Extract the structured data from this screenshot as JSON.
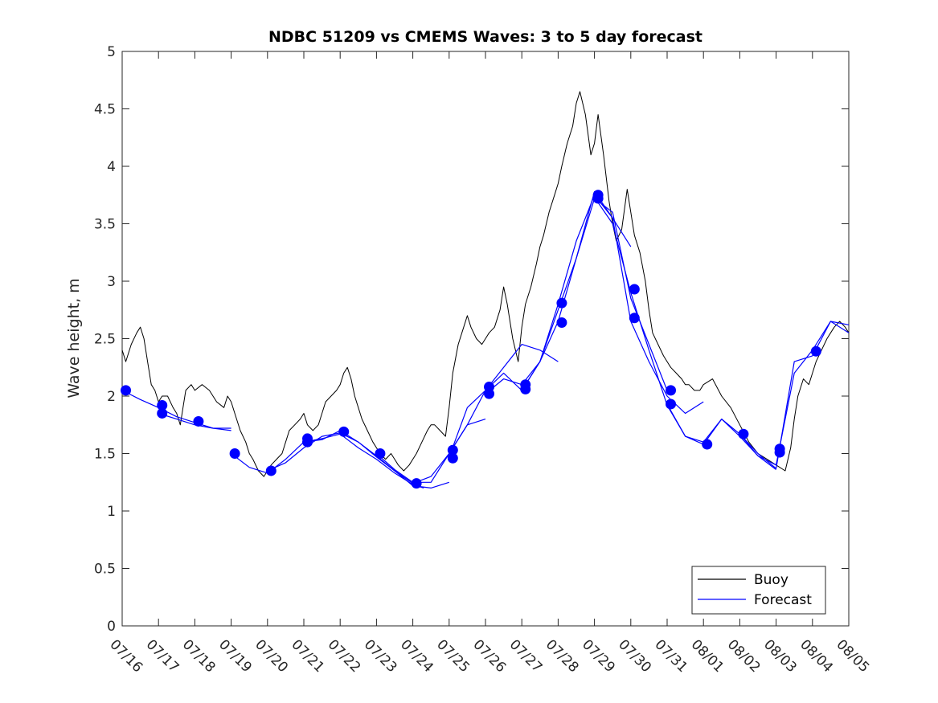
{
  "chart_data": {
    "type": "line",
    "title": "NDBC 51209 vs CMEMS Waves: 3 to 5 day forecast",
    "xlabel": "",
    "ylabel": "Wave height, m",
    "xlim": [
      "07/16",
      "08/05"
    ],
    "ylim": [
      0,
      5
    ],
    "x_ticks": [
      "07/16",
      "07/17",
      "07/18",
      "07/19",
      "07/20",
      "07/21",
      "07/22",
      "07/23",
      "07/24",
      "07/25",
      "07/26",
      "07/27",
      "07/28",
      "07/29",
      "07/30",
      "07/31",
      "08/01",
      "08/02",
      "08/03",
      "08/04",
      "08/05"
    ],
    "y_ticks": [
      "0",
      "0.5",
      "1",
      "1.5",
      "2",
      "2.5",
      "3",
      "3.5",
      "4",
      "4.5",
      "5"
    ],
    "grid": false,
    "legend": {
      "position": "bottom-right",
      "entries": [
        "Buoy",
        "Forecast"
      ]
    },
    "colors": {
      "buoy": "#000000",
      "forecast": "#0000ff"
    },
    "series": [
      {
        "name": "Buoy",
        "x_days": [
          0,
          0.1,
          0.25,
          0.4,
          0.5,
          0.6,
          0.7,
          0.8,
          0.9,
          1.0,
          1.1,
          1.25,
          1.4,
          1.5,
          1.6,
          1.75,
          1.9,
          2.0,
          2.2,
          2.4,
          2.6,
          2.8,
          2.9,
          3.0,
          3.1,
          3.25,
          3.4,
          3.5,
          3.6,
          3.75,
          3.9,
          4.0,
          4.1,
          4.25,
          4.4,
          4.5,
          4.6,
          4.75,
          4.9,
          5.0,
          5.1,
          5.25,
          5.4,
          5.5,
          5.6,
          5.75,
          5.9,
          6.0,
          6.1,
          6.2,
          6.3,
          6.4,
          6.5,
          6.6,
          6.75,
          6.9,
          7.0,
          7.1,
          7.25,
          7.4,
          7.5,
          7.6,
          7.75,
          7.9,
          8.0,
          8.1,
          8.25,
          8.4,
          8.5,
          8.6,
          8.75,
          8.9,
          9.0,
          9.1,
          9.25,
          9.4,
          9.5,
          9.6,
          9.75,
          9.9,
          10.0,
          10.1,
          10.25,
          10.4,
          10.5,
          10.6,
          10.75,
          10.9,
          11.0,
          11.1,
          11.25,
          11.4,
          11.5,
          11.6,
          11.75,
          11.9,
          12.0,
          12.1,
          12.25,
          12.4,
          12.5,
          12.6,
          12.75,
          12.9,
          13.0,
          13.1,
          13.25,
          13.4,
          13.5,
          13.6,
          13.75,
          13.9,
          14.0,
          14.1,
          14.25,
          14.4,
          14.5,
          14.6,
          14.75,
          14.9,
          15.0,
          15.1,
          15.25,
          15.4,
          15.5,
          15.6,
          15.75,
          15.9,
          16.0,
          16.25,
          16.5,
          16.75,
          17.0,
          17.25,
          17.5,
          17.75,
          18.0,
          18.25,
          18.4,
          18.5,
          18.6,
          18.75,
          18.9,
          19.0,
          19.1,
          19.25,
          19.4,
          19.5,
          19.6,
          19.75,
          19.9,
          20.0
        ],
        "values": [
          2.4,
          2.3,
          2.45,
          2.55,
          2.6,
          2.5,
          2.3,
          2.1,
          2.05,
          1.95,
          2.0,
          2.0,
          1.9,
          1.85,
          1.75,
          2.05,
          2.1,
          2.05,
          2.1,
          2.05,
          1.95,
          1.9,
          2.0,
          1.95,
          1.85,
          1.7,
          1.6,
          1.5,
          1.45,
          1.35,
          1.3,
          1.35,
          1.4,
          1.45,
          1.5,
          1.6,
          1.7,
          1.75,
          1.8,
          1.85,
          1.75,
          1.7,
          1.75,
          1.85,
          1.95,
          2.0,
          2.05,
          2.1,
          2.2,
          2.25,
          2.15,
          2.0,
          1.9,
          1.8,
          1.7,
          1.6,
          1.55,
          1.5,
          1.45,
          1.5,
          1.45,
          1.4,
          1.35,
          1.4,
          1.45,
          1.5,
          1.6,
          1.7,
          1.75,
          1.75,
          1.7,
          1.65,
          1.9,
          2.2,
          2.45,
          2.6,
          2.7,
          2.6,
          2.5,
          2.45,
          2.5,
          2.55,
          2.6,
          2.75,
          2.95,
          2.8,
          2.5,
          2.3,
          2.6,
          2.8,
          2.95,
          3.15,
          3.3,
          3.4,
          3.6,
          3.75,
          3.85,
          4.0,
          4.2,
          4.35,
          4.55,
          4.65,
          4.45,
          4.1,
          4.2,
          4.45,
          4.1,
          3.7,
          3.5,
          3.35,
          3.45,
          3.8,
          3.6,
          3.4,
          3.25,
          3.0,
          2.75,
          2.55,
          2.45,
          2.35,
          2.3,
          2.25,
          2.2,
          2.15,
          2.1,
          2.1,
          2.05,
          2.05,
          2.1,
          2.15,
          2.0,
          1.9,
          1.75,
          1.6,
          1.5,
          1.45,
          1.4,
          1.35,
          1.55,
          1.8,
          2.0,
          2.15,
          2.1,
          2.2,
          2.3,
          2.4,
          2.5,
          2.55,
          2.6,
          2.65,
          2.6,
          2.55
        ]
      },
      {
        "name": "Forecast",
        "x_days": [
          0,
          0.5,
          1.0,
          1.5,
          2.0,
          2.5,
          3.0
        ],
        "values": [
          2.05,
          1.97,
          1.9,
          1.82,
          1.77,
          1.72,
          1.7
        ]
      },
      {
        "x_days": [
          1.0,
          1.5,
          2.0,
          2.5,
          3.0
        ],
        "values": [
          1.85,
          1.8,
          1.75,
          1.72,
          1.72
        ]
      },
      {
        "x_days": [
          3.0,
          3.5,
          4.0,
          4.5,
          5.0,
          5.5,
          6.0,
          6.5,
          7.0,
          7.5,
          8.0,
          8.3
        ],
        "values": [
          1.5,
          1.38,
          1.33,
          1.45,
          1.6,
          1.63,
          1.67,
          1.55,
          1.45,
          1.33,
          1.23,
          1.2
        ]
      },
      {
        "x_days": [
          4.0,
          4.5,
          5.0,
          5.5,
          6.0,
          6.5,
          7.0,
          7.5,
          8.0,
          8.5,
          9.0
        ],
        "values": [
          1.35,
          1.42,
          1.55,
          1.65,
          1.68,
          1.6,
          1.47,
          1.35,
          1.22,
          1.2,
          1.25
        ]
      },
      {
        "x_days": [
          5.0,
          5.5,
          6.0,
          6.5,
          7.0,
          7.5,
          8.0,
          8.5,
          9.0,
          9.5,
          10.0
        ],
        "values": [
          1.6,
          1.62,
          1.7,
          1.6,
          1.48,
          1.35,
          1.24,
          1.3,
          1.5,
          1.75,
          1.8
        ]
      },
      {
        "x_days": [
          7.0,
          7.5,
          8.0,
          8.5,
          9.0,
          9.5,
          10.0,
          10.5,
          11.0,
          11.5,
          12.0
        ],
        "values": [
          1.5,
          1.36,
          1.25,
          1.25,
          1.5,
          1.75,
          2.05,
          2.25,
          2.45,
          2.4,
          2.3
        ]
      },
      {
        "x_days": [
          9.0,
          9.5,
          10.0,
          10.5,
          11.0,
          11.5,
          12.0,
          12.5,
          13.0,
          13.5,
          14.0
        ],
        "values": [
          1.47,
          1.9,
          2.05,
          2.2,
          2.05,
          2.3,
          2.65,
          3.2,
          3.78,
          3.55,
          3.3
        ]
      },
      {
        "x_days": [
          10.0,
          10.5,
          11.0,
          11.5,
          12.0,
          12.5,
          13.0,
          13.5,
          14.0,
          14.5,
          15.0
        ],
        "values": [
          2.02,
          2.15,
          2.1,
          2.3,
          2.75,
          3.2,
          3.72,
          3.6,
          2.85,
          2.45,
          2.05
        ]
      },
      {
        "x_days": [
          11.0,
          11.5,
          12.0,
          12.5,
          13.0,
          13.5,
          14.0,
          14.5,
          15.0,
          15.5,
          16.0
        ],
        "values": [
          2.05,
          2.3,
          2.8,
          3.35,
          3.75,
          3.55,
          2.65,
          2.3,
          2.0,
          1.85,
          1.95
        ]
      },
      {
        "x_days": [
          13.0,
          13.5,
          14.0,
          14.5,
          15.0,
          15.5,
          16.0,
          16.5,
          17.0,
          17.5,
          18.0
        ],
        "values": [
          3.73,
          3.5,
          2.9,
          2.4,
          1.92,
          1.65,
          1.6,
          1.8,
          1.67,
          1.48,
          1.36
        ]
      },
      {
        "x_days": [
          15.0,
          15.5,
          16.0,
          16.5,
          17.0,
          17.5,
          18.0,
          18.5,
          19.0,
          19.5,
          20.0
        ],
        "values": [
          1.93,
          1.65,
          1.58,
          1.8,
          1.65,
          1.48,
          1.4,
          2.2,
          2.4,
          2.65,
          2.55
        ]
      },
      {
        "x_days": [
          17.0,
          17.5,
          18.0,
          18.5,
          19.0,
          19.5,
          20.0
        ],
        "values": [
          1.67,
          1.5,
          1.37,
          2.3,
          2.35,
          2.65,
          2.62
        ]
      }
    ],
    "markers": {
      "x_days": [
        0.1,
        1.1,
        1.1,
        2.1,
        3.1,
        4.1,
        5.1,
        5.1,
        6.1,
        7.1,
        8.1,
        9.1,
        9.1,
        10.1,
        10.1,
        11.1,
        11.1,
        12.1,
        12.1,
        13.1,
        13.1,
        14.1,
        14.1,
        15.1,
        15.1,
        16.1,
        17.1,
        18.1,
        18.1,
        19.1
      ],
      "values": [
        2.05,
        1.92,
        1.85,
        1.78,
        1.5,
        1.35,
        1.6,
        1.63,
        1.69,
        1.5,
        1.24,
        1.53,
        1.46,
        2.08,
        2.02,
        2.1,
        2.06,
        2.81,
        2.64,
        3.75,
        3.72,
        2.93,
        2.68,
        2.05,
        1.93,
        1.58,
        1.67,
        1.54,
        1.51,
        2.39
      ]
    }
  }
}
